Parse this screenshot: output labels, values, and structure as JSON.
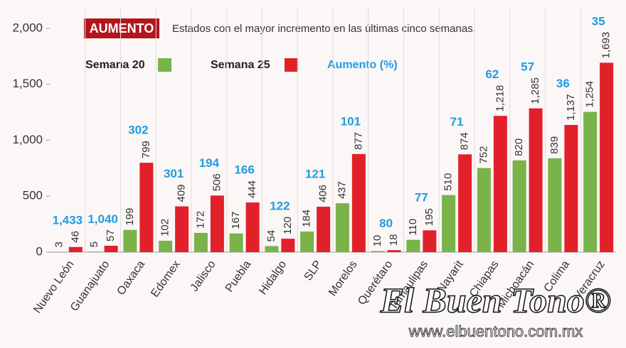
{
  "chart_data": {
    "type": "bar",
    "badge": "AUMENTO",
    "title": "Estados con el mayor incremento en las últimas cinco semanas.",
    "categories": [
      "Nuevo León",
      "Guanajuato",
      "Oaxaca",
      "Edomex",
      "Jalisco",
      "Puebla",
      "Hidalgo",
      "SLP",
      "Morelos",
      "Querétaro",
      "Tamaulipas",
      "Nayarit",
      "Chiapas",
      "Michoacán",
      "Colima",
      "Veracruz"
    ],
    "series": [
      {
        "name": "Semana 20",
        "color": "#79b34a",
        "values": [
          3,
          5,
          199,
          102,
          172,
          167,
          54,
          184,
          437,
          10,
          110,
          510,
          752,
          820,
          839,
          1254
        ],
        "value_labels": [
          "3",
          "5",
          "199",
          "102",
          "172",
          "167",
          "54",
          "184",
          "437",
          "10",
          "110",
          "510",
          "752",
          "820",
          "839",
          "1,254"
        ]
      },
      {
        "name": "Semana 25",
        "color": "#e2202a",
        "values": [
          46,
          57,
          799,
          409,
          506,
          444,
          120,
          406,
          877,
          18,
          195,
          874,
          1218,
          1285,
          1137,
          1693
        ],
        "value_labels": [
          "46",
          "57",
          "799",
          "409",
          "506",
          "444",
          "120",
          "406",
          "877",
          "18",
          "195",
          "874",
          "1,218",
          "1,285",
          "1,137",
          "1,693"
        ]
      }
    ],
    "increase": {
      "name": "Aumento (%)",
      "color": "#1f9ce0",
      "values": [
        1433,
        1040,
        302,
        301,
        194,
        166,
        122,
        121,
        101,
        80,
        77,
        71,
        62,
        57,
        36,
        35
      ],
      "value_labels": [
        "1,433",
        "1,040",
        "302",
        "301",
        "194",
        "166",
        "122",
        "121",
        "101",
        "80",
        "77",
        "71",
        "62",
        "57",
        "36",
        "35"
      ]
    },
    "ylim": [
      0,
      2000
    ],
    "yticks": [
      0,
      500,
      {
        "value": 1000,
        "label": "1,000"
      },
      {
        "value": 1500,
        "label": "1,500"
      },
      {
        "value": 2000,
        "label": "2,000"
      }
    ]
  },
  "watermark": {
    "name": "El Buen Tono®",
    "url": "www.elbuentono.com.mx"
  }
}
